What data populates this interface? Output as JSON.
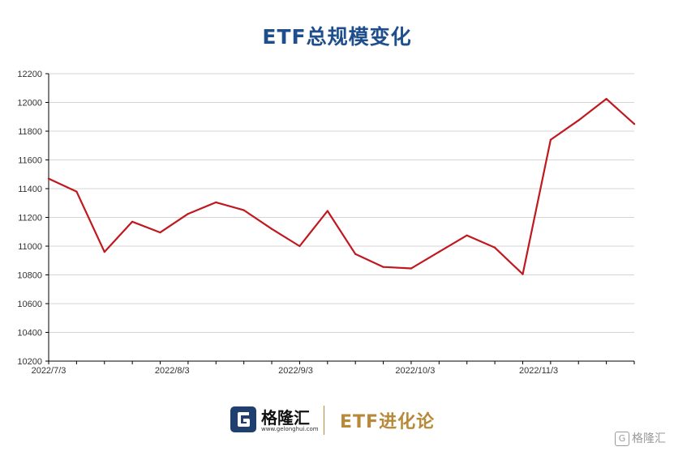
{
  "chart_data": {
    "type": "line",
    "title": "ETF总规模变化",
    "xlabel": "",
    "ylabel": "",
    "ylim": [
      10200,
      12200
    ],
    "yticks": [
      10200,
      10400,
      10600,
      10800,
      11000,
      11200,
      11400,
      11600,
      11800,
      12000,
      12200
    ],
    "xtick_labels": [
      "2022/7/3",
      "2022/8/3",
      "2022/9/3",
      "2022/10/3",
      "2022/11/3"
    ],
    "grid": true,
    "series": [
      {
        "color": "#c0181f",
        "x": [
          "2022/7/3",
          "2022/7/10",
          "2022/7/17",
          "2022/7/24",
          "2022/7/31",
          "2022/8/7",
          "2022/8/14",
          "2022/8/21",
          "2022/8/28",
          "2022/9/4",
          "2022/9/11",
          "2022/9/18",
          "2022/9/25",
          "2022/10/2",
          "2022/10/9",
          "2022/10/16",
          "2022/10/23",
          "2022/10/30",
          "2022/11/6",
          "2022/11/13",
          "2022/11/20",
          "2022/11/27"
        ],
        "values": [
          11470,
          11380,
          10960,
          11170,
          11095,
          11225,
          11305,
          11250,
          11120,
          11000,
          11245,
          10945,
          10855,
          10845,
          10960,
          11075,
          10990,
          10805,
          11740,
          11875,
          12025,
          11850
        ]
      }
    ]
  },
  "footer": {
    "brand": "格隆汇",
    "url": "www.gelonghui.com",
    "slogan": "ETF进化论",
    "watermark": "格隆汇"
  }
}
